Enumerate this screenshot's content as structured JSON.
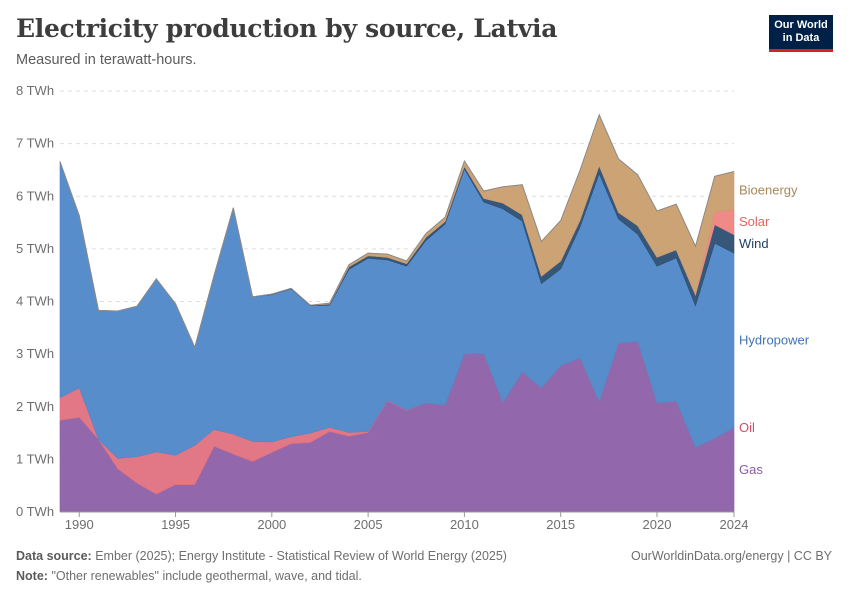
{
  "header": {
    "title": "Electricity production by source, Latvia",
    "subtitle": "Measured in terawatt-hours.",
    "logo_line1": "Our World",
    "logo_line2": "in Data"
  },
  "footer": {
    "source_label": "Data source:",
    "source_text": "Ember (2025); Energy Institute - Statistical Review of World Energy (2025)",
    "note_label": "Note:",
    "note_text": "\"Other renewables\" include geothermal, wave, and tidal.",
    "credit": "OurWorldinData.org/energy | CC BY"
  },
  "colors": {
    "Gas": "#8c5fa6",
    "Oil": "#e0707e",
    "Hydropower": "#4f87c8",
    "Wind": "#2c4e72",
    "Solar": "#ee8480",
    "Bioenergy": "#c99e6e"
  },
  "label_colors": {
    "Gas": "#8b5aa5",
    "Oil": "#cf4f6a",
    "Hydropower": "#3f74b8",
    "Wind": "#1e3d5f",
    "Solar": "#e0655f",
    "Bioenergy": "#a8875a"
  },
  "chart_data": {
    "type": "area",
    "stacked": true,
    "title": "Electricity production by source, Latvia",
    "ylabel": "TWh",
    "ylim": [
      0,
      8
    ],
    "xlim": [
      1989,
      2024
    ],
    "y_ticks": [
      0,
      1,
      2,
      3,
      4,
      5,
      6,
      7,
      8
    ],
    "y_tick_labels": [
      "0 TWh",
      "1 TWh",
      "2 TWh",
      "3 TWh",
      "4 TWh",
      "5 TWh",
      "6 TWh",
      "7 TWh",
      "8 TWh"
    ],
    "x_ticks": [
      1990,
      1995,
      2000,
      2005,
      2010,
      2015,
      2020,
      2024
    ],
    "x_tick_labels": [
      "1990",
      "1995",
      "2000",
      "2005",
      "2010",
      "2015",
      "2020",
      "2024"
    ],
    "grid": true,
    "x": [
      1989,
      1990,
      1991,
      1992,
      1993,
      1994,
      1995,
      1996,
      1997,
      1998,
      1999,
      2000,
      2001,
      2002,
      2003,
      2004,
      2005,
      2006,
      2007,
      2008,
      2009,
      2010,
      2011,
      2012,
      2013,
      2014,
      2015,
      2016,
      2017,
      2018,
      2019,
      2020,
      2021,
      2022,
      2023,
      2024
    ],
    "series": [
      {
        "name": "Gas",
        "values": [
          1.74,
          1.8,
          1.38,
          0.82,
          0.55,
          0.34,
          0.52,
          0.52,
          1.25,
          1.1,
          0.96,
          1.13,
          1.3,
          1.32,
          1.53,
          1.44,
          1.51,
          2.11,
          1.93,
          2.07,
          2.03,
          3.0,
          3.01,
          2.08,
          2.66,
          2.36,
          2.78,
          2.93,
          2.1,
          3.21,
          3.24,
          2.07,
          2.11,
          1.23,
          1.4,
          1.6
        ]
      },
      {
        "name": "Oil",
        "values": [
          0.43,
          0.56,
          0.0,
          0.2,
          0.5,
          0.8,
          0.56,
          0.75,
          0.32,
          0.38,
          0.38,
          0.2,
          0.13,
          0.18,
          0.08,
          0.07,
          0.02,
          0.01,
          0.01,
          0.0,
          0.0,
          0.0,
          0.0,
          0.0,
          0.0,
          0.0,
          0.0,
          0.0,
          0.0,
          0.0,
          0.0,
          0.0,
          0.0,
          0.0,
          0.0,
          0.0
        ]
      },
      {
        "name": "Hydropower",
        "values": [
          4.49,
          3.27,
          2.45,
          2.8,
          2.86,
          3.29,
          2.88,
          1.86,
          2.93,
          4.3,
          2.75,
          2.8,
          2.81,
          2.42,
          2.32,
          3.1,
          3.29,
          2.67,
          2.73,
          3.09,
          3.44,
          3.52,
          2.88,
          3.68,
          2.87,
          1.98,
          1.84,
          2.48,
          4.33,
          2.36,
          2.04,
          2.6,
          2.72,
          2.69,
          3.71,
          3.32
        ]
      },
      {
        "name": "Wind",
        "values": [
          0.0,
          0.0,
          0.0,
          0.0,
          0.0,
          0.0,
          0.0,
          0.0,
          0.0,
          0.0,
          0.0,
          0.01,
          0.01,
          0.01,
          0.02,
          0.05,
          0.05,
          0.05,
          0.05,
          0.06,
          0.05,
          0.05,
          0.07,
          0.11,
          0.12,
          0.14,
          0.15,
          0.13,
          0.15,
          0.12,
          0.16,
          0.17,
          0.15,
          0.2,
          0.35,
          0.35
        ]
      },
      {
        "name": "Solar",
        "values": [
          0,
          0,
          0,
          0,
          0,
          0,
          0,
          0,
          0,
          0,
          0,
          0,
          0,
          0,
          0,
          0,
          0,
          0,
          0,
          0,
          0,
          0,
          0,
          0,
          0,
          0,
          0,
          0,
          0,
          0,
          0,
          0,
          0,
          0.01,
          0.24,
          0.48
        ]
      },
      {
        "name": "Bioenergy",
        "values": [
          0.0,
          0.0,
          0.0,
          0.0,
          0.0,
          0.0,
          0.0,
          0.0,
          0.0,
          0.0,
          0.0,
          0.0,
          0.0,
          0.0,
          0.02,
          0.04,
          0.05,
          0.06,
          0.05,
          0.07,
          0.08,
          0.1,
          0.14,
          0.31,
          0.57,
          0.66,
          0.77,
          0.95,
          0.97,
          1.02,
          0.97,
          0.88,
          0.87,
          0.92,
          0.68,
          0.72
        ]
      }
    ],
    "legend": "right-inline"
  }
}
